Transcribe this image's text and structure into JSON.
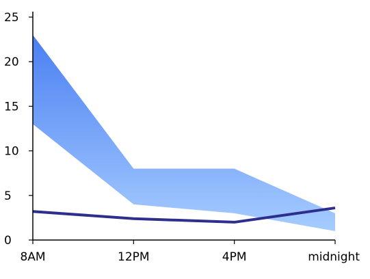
{
  "chart_data": {
    "type": "area",
    "x": [
      "8AM",
      "12PM",
      "4PM",
      "midnight"
    ],
    "ylim": [
      0,
      25
    ],
    "yticks": [
      0,
      5,
      10,
      15,
      20,
      25
    ],
    "band": {
      "lower": [
        13,
        4,
        3,
        1
      ],
      "upper": [
        23,
        8,
        8,
        3
      ]
    },
    "series": [
      {
        "values": [
          3.2,
          2.4,
          2.0,
          3.6
        ]
      }
    ],
    "grid": false,
    "legend": "none"
  },
  "colors": {
    "band_top": "#4a7ff2",
    "band_bottom": "#a6ccff",
    "line": "#2e2e8c",
    "axis": "#000000"
  }
}
